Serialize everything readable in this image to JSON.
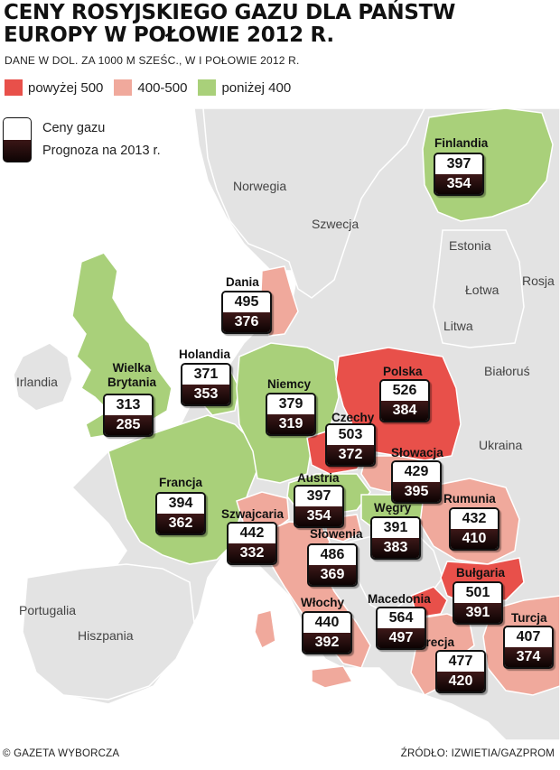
{
  "title": "CENY ROSYJSKIEGO GAZU DLA PAŃSTW EUROPY W POŁOWIE 2012 R.",
  "subtitle": "DANE W DOL. ZA 1000 M SZEŚC., W I POŁOWIE 2012 R.",
  "legend": {
    "items": [
      {
        "label": "powyżej 500",
        "color": "#e8504a"
      },
      {
        "label": "400-500",
        "color": "#f0a99c"
      },
      {
        "label": "poniżej 400",
        "color": "#a9d07a"
      }
    ],
    "current_label": "Ceny gazu",
    "forecast_label": "Prognoza na 2013 r."
  },
  "colors": {
    "sea": "#ffffff",
    "land_other": "#e3e3e3",
    "above500": "#e8504a",
    "mid": "#f0a99c",
    "below400": "#a9d07a"
  },
  "countries": {
    "finlandia": {
      "name": "Finlandia",
      "price": "397",
      "forecast": "354"
    },
    "dania": {
      "name": "Dania",
      "price": "495",
      "forecast": "376"
    },
    "holandia": {
      "name": "Holandia",
      "price": "371",
      "forecast": "353"
    },
    "wielka": {
      "name": "Wielka Brytania",
      "price": "313",
      "forecast": "285"
    },
    "niemcy": {
      "name": "Niemcy",
      "price": "379",
      "forecast": "319"
    },
    "polska": {
      "name": "Polska",
      "price": "526",
      "forecast": "384"
    },
    "czechy": {
      "name": "Czechy",
      "price": "503",
      "forecast": "372"
    },
    "slowacja": {
      "name": "Słowacja",
      "price": "429",
      "forecast": "395"
    },
    "francja": {
      "name": "Francja",
      "price": "394",
      "forecast": "362"
    },
    "austria": {
      "name": "Austria",
      "price": "397",
      "forecast": "354"
    },
    "szwajcaria": {
      "name": "Szwajcaria",
      "price": "442",
      "forecast": "332"
    },
    "wegry": {
      "name": "Węgry",
      "price": "391",
      "forecast": "383"
    },
    "rumunia": {
      "name": "Rumunia",
      "price": "432",
      "forecast": "410"
    },
    "slowenia": {
      "name": "Słowenia",
      "price": "486",
      "forecast": "369"
    },
    "bulgaria": {
      "name": "Bułgaria",
      "price": "501",
      "forecast": "391"
    },
    "wlochy": {
      "name": "Włochy",
      "price": "440",
      "forecast": "392"
    },
    "macedonia": {
      "name": "Macedonia",
      "price": "564",
      "forecast": "497"
    },
    "turcja": {
      "name": "Turcja",
      "price": "407",
      "forecast": "374"
    },
    "grecja": {
      "name": "Grecja",
      "price": "477",
      "forecast": "420"
    }
  },
  "other_labels": {
    "norwegia": "Norwegia",
    "szwecja": "Szwecja",
    "estonia": "Estonia",
    "rosja": "Rosja",
    "lotwa": "Łotwa",
    "litwa": "Litwa",
    "irlandia": "Irlandia",
    "bialorus": "Białoruś",
    "ukraina": "Ukraina",
    "portugalia": "Portugalia",
    "hiszpania": "Hiszpania"
  },
  "footer": {
    "left": "© GAZETA WYBORCZA",
    "right": "ŹRÓDŁO: IZWIETIA/GAZPROM"
  }
}
